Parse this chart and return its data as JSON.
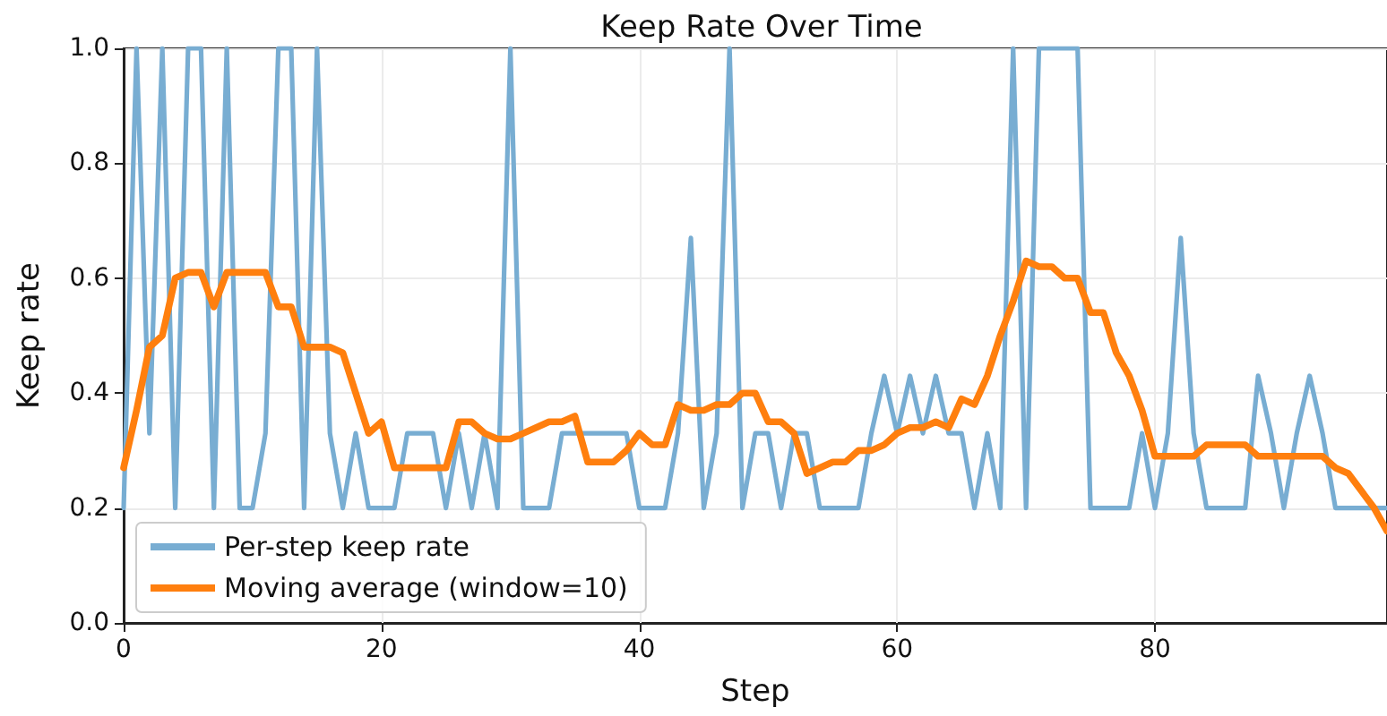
{
  "chart_data": {
    "type": "line",
    "title": "Keep Rate Over Time",
    "xlabel": "Step",
    "ylabel": "Keep rate",
    "x": [
      0,
      1,
      2,
      3,
      4,
      5,
      6,
      7,
      8,
      9,
      10,
      11,
      12,
      13,
      14,
      15,
      16,
      17,
      18,
      19,
      20,
      21,
      22,
      23,
      24,
      25,
      26,
      27,
      28,
      29,
      30,
      31,
      32,
      33,
      34,
      35,
      36,
      37,
      38,
      39,
      40,
      41,
      42,
      43,
      44,
      45,
      46,
      47,
      48,
      49,
      50,
      51,
      52,
      53,
      54,
      55,
      56,
      57,
      58,
      59,
      60,
      61,
      62,
      63,
      64,
      65,
      66,
      67,
      68,
      69,
      70,
      71,
      72,
      73,
      74,
      75,
      76,
      77,
      78,
      79,
      80,
      81,
      82,
      83,
      84,
      85,
      86,
      87,
      88,
      89,
      90,
      91,
      92,
      93,
      94,
      95,
      96,
      97,
      98
    ],
    "series": [
      {
        "name": "Per-step keep rate",
        "color": "#78add2",
        "values": [
          0.2,
          1,
          0.33,
          1,
          0.2,
          1,
          1,
          0.2,
          1,
          0.2,
          0.2,
          0.33,
          1,
          1,
          0.2,
          1,
          0.33,
          0.2,
          0.33,
          0.2,
          0.2,
          0.2,
          0.33,
          0.33,
          0.33,
          0.2,
          0.33,
          0.2,
          0.33,
          0.2,
          1,
          0.2,
          0.2,
          0.2,
          0.33,
          0.33,
          0.33,
          0.33,
          0.33,
          0.33,
          0.2,
          0.2,
          0.2,
          0.33,
          0.67,
          0.2,
          0.33,
          1,
          0.2,
          0.33,
          0.33,
          0.2,
          0.33,
          0.33,
          0.2,
          0.2,
          0.2,
          0.2,
          0.33,
          0.43,
          0.33,
          0.43,
          0.33,
          0.43,
          0.33,
          0.33,
          0.2,
          0.33,
          0.2,
          1,
          0.2,
          1,
          1,
          1,
          1,
          0.2,
          0.2,
          0.2,
          0.2,
          0.33,
          0.2,
          0.33,
          0.67,
          0.33,
          0.2,
          0.2,
          0.2,
          0.2,
          0.43,
          0.33,
          0.2,
          0.33,
          0.43,
          0.33,
          0.2,
          0.2,
          0.2,
          0.2,
          0.2
        ]
      },
      {
        "name": "Moving average (window=10)",
        "color": "#ff7f0e",
        "values": [
          0.27,
          0.37,
          0.48,
          0.5,
          0.6,
          0.61,
          0.61,
          0.55,
          0.61,
          0.61,
          0.61,
          0.61,
          0.55,
          0.55,
          0.48,
          0.48,
          0.48,
          0.47,
          0.4,
          0.33,
          0.35,
          0.27,
          0.27,
          0.27,
          0.27,
          0.27,
          0.35,
          0.35,
          0.33,
          0.32,
          0.32,
          0.33,
          0.34,
          0.35,
          0.35,
          0.36,
          0.28,
          0.28,
          0.28,
          0.3,
          0.33,
          0.31,
          0.31,
          0.38,
          0.37,
          0.37,
          0.38,
          0.38,
          0.4,
          0.4,
          0.35,
          0.35,
          0.33,
          0.26,
          0.27,
          0.28,
          0.28,
          0.3,
          0.3,
          0.31,
          0.33,
          0.34,
          0.34,
          0.35,
          0.34,
          0.39,
          0.38,
          0.43,
          0.5,
          0.56,
          0.63,
          0.62,
          0.62,
          0.6,
          0.6,
          0.54,
          0.54,
          0.47,
          0.43,
          0.37,
          0.29,
          0.29,
          0.29,
          0.29,
          0.31,
          0.31,
          0.31,
          0.31,
          0.29,
          0.29,
          0.29,
          0.29,
          0.29,
          0.29,
          0.27,
          0.26,
          0.23,
          0.2,
          0.16
        ]
      }
    ],
    "xlim": [
      0,
      98
    ],
    "xticks": [
      0,
      20,
      40,
      60,
      80
    ],
    "ylim": [
      0,
      1
    ],
    "yticks": [
      {
        "value": 0,
        "label": "0.0"
      },
      {
        "value": 0.2,
        "label": "0.2"
      },
      {
        "value": 0.4,
        "label": "0.4"
      },
      {
        "value": 0.6,
        "label": "0.6"
      },
      {
        "value": 0.8,
        "label": "0.8"
      },
      {
        "value": 1,
        "label": "1.0"
      }
    ],
    "grid": true,
    "legend": "bottom left",
    "line_style": "solid",
    "marker": "none"
  }
}
